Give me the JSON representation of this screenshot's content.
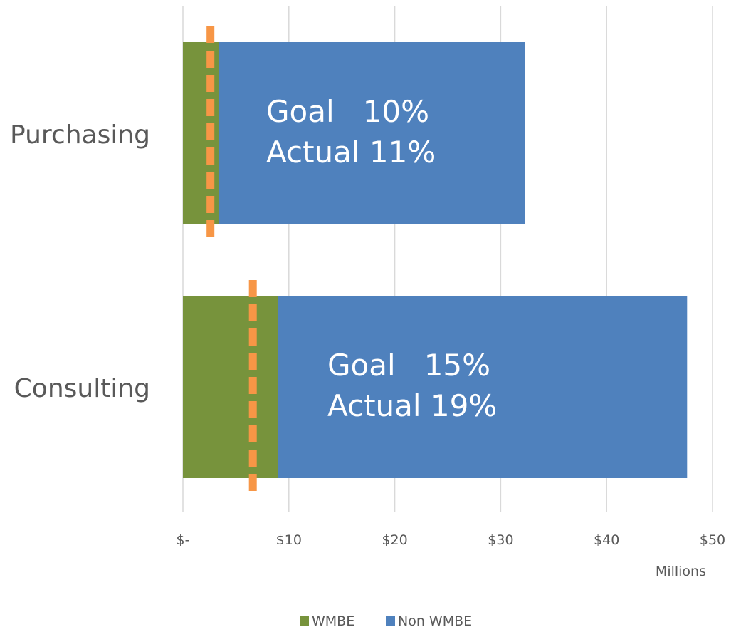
{
  "chart_data": {
    "type": "bar",
    "orientation": "horizontal",
    "stacked": true,
    "title": "",
    "xlabel": "",
    "ylabel": "",
    "x_unit_label": "Millions",
    "categories": [
      "Purchasing",
      "Consulting"
    ],
    "series": [
      {
        "name": "WMBE",
        "color": "#77933C",
        "values": [
          3.4,
          9.0
        ]
      },
      {
        "name": "Non WMBE",
        "color": "#4F81BD",
        "values": [
          28.9,
          38.6
        ]
      }
    ],
    "goal_markers": {
      "color": "#F79646",
      "style": "dashed",
      "values": [
        2.6,
        6.6
      ]
    },
    "annotations": [
      {
        "category": "Purchasing",
        "line1": "Goal   10%",
        "line2": "Actual 11%"
      },
      {
        "category": "Consulting",
        "line1": "Goal   15%",
        "line2": "Actual 19%"
      }
    ],
    "xlim": [
      0,
      50
    ],
    "x_ticks": [
      0,
      10,
      20,
      30,
      40,
      50
    ],
    "x_tick_labels": [
      "$-",
      "$10",
      "$20",
      "$30",
      "$40",
      "$50"
    ],
    "grid": "vertical",
    "legend": {
      "position": "bottom",
      "entries": [
        "WMBE",
        "Non WMBE"
      ]
    }
  }
}
